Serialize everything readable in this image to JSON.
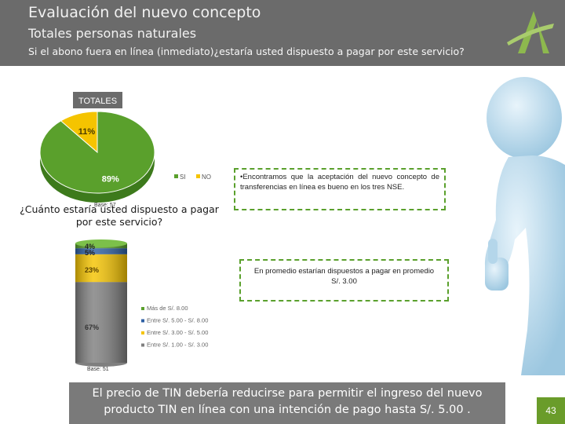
{
  "header": {
    "title": "Evaluación del nuevo concepto",
    "subtitle": "Totales personas naturales",
    "question": "Si el abono fuera en línea (inmediato)¿estaría usted dispuesto a pagar por este servicio?"
  },
  "colors": {
    "header_bg": "#6b6b6b",
    "accent_green": "#6a9c2a",
    "si": "#5aa02c",
    "no": "#f5c400",
    "mas_8": "#5aa02c",
    "entre_5_8": "#2e5fa3",
    "entre_3_5": "#f5c400",
    "entre_1_3": "#7f7f7f"
  },
  "chart_data": [
    {
      "type": "pie",
      "title": "TOTALES",
      "categories": [
        "SI",
        "NO"
      ],
      "values": [
        89,
        11
      ],
      "data_labels": [
        "89%",
        "11%"
      ],
      "base_label": "Base: 57",
      "legend_position": "bottom-right"
    },
    {
      "type": "bar",
      "stacked": true,
      "title": "¿Cuánto estaría usted dispuesto a pagar por este servicio?",
      "series": [
        {
          "name": "Entre S/. 1.00 - S/. 3.00",
          "values": [
            67
          ],
          "label": "67%"
        },
        {
          "name": "Entre S/. 3.00 - S/. 5.00",
          "values": [
            23
          ],
          "label": "23%"
        },
        {
          "name": "Entre S/. 5.00 - S/. 8.00",
          "values": [
            5
          ],
          "label": "5%"
        },
        {
          "name": "Más de S/. 8.00",
          "values": [
            4
          ],
          "label": "4%"
        }
      ],
      "legend_order": [
        "Más de S/. 8.00",
        "Entre S/. 5.00 - S/. 8.00",
        "Entre S/. 3.00 - S/. 5.00",
        "Entre S/. 1.00 - S/. 3.00"
      ],
      "base_label": "Base: 51",
      "legend_position": "right"
    }
  ],
  "notes": {
    "note1": "•Encontramos que la aceptación del nuevo concepto de transferencias en línea es bueno en los tres NSE.",
    "note2_line1": "En promedio estarían dispuestos a pagar en promedio",
    "note2_line2": "S/. 3.00"
  },
  "footer": {
    "conclusion": "El precio de TIN debería reducirse para permitir el ingreso del nuevo producto TIN en línea con una intención de pago hasta S/. 5.00 .",
    "page_number": "43"
  }
}
